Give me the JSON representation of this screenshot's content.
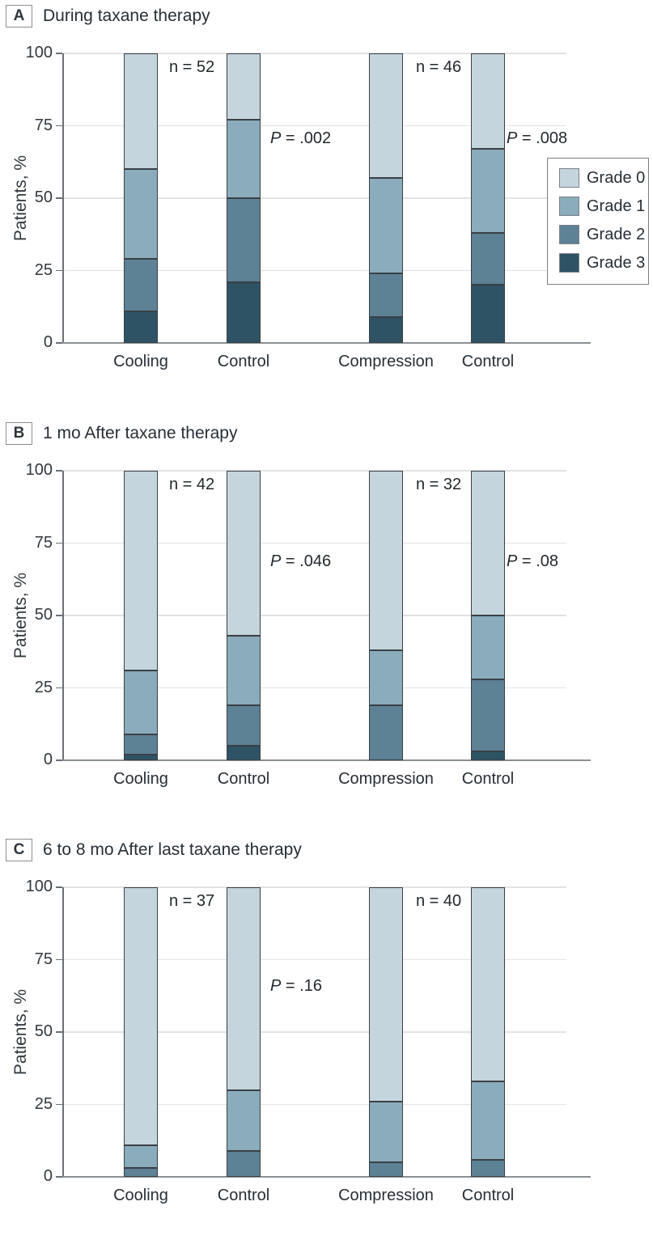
{
  "figure": {
    "ylabel": "Patients, %",
    "yticks": [
      "0",
      "25",
      "50",
      "75",
      "100"
    ]
  },
  "legend": {
    "items": [
      {
        "label": "Grade 0",
        "color": "#c5d5de"
      },
      {
        "label": "Grade 1",
        "color": "#8aacbc"
      },
      {
        "label": "Grade 2",
        "color": "#5d8195"
      },
      {
        "label": "Grade 3",
        "color": "#2e5364"
      }
    ]
  },
  "chart_data": [
    {
      "id": "a",
      "type": "bar",
      "stacked": true,
      "panel_letter": "A",
      "title": "During taxane therapy",
      "categories": [
        "Cooling",
        "Control",
        "Compression",
        "Control"
      ],
      "series": [
        {
          "name": "Grade 0",
          "color": "#c5d5de",
          "values": [
            40,
            23,
            43,
            33
          ]
        },
        {
          "name": "Grade 1",
          "color": "#8aacbc",
          "values": [
            31,
            27,
            33,
            29
          ]
        },
        {
          "name": "Grade 2",
          "color": "#5d8195",
          "values": [
            18,
            29,
            15,
            18
          ]
        },
        {
          "name": "Grade 3",
          "color": "#2e5364",
          "values": [
            11,
            21,
            9,
            20
          ]
        }
      ],
      "ylabel": "Patients, %",
      "ylim": [
        0,
        100
      ],
      "grid": true,
      "legend_position": "right",
      "annotations": {
        "n1": "n = 52",
        "n2": "n = 46",
        "p1": "P = .002",
        "p2": "P = .008"
      }
    },
    {
      "id": "b",
      "type": "bar",
      "stacked": true,
      "panel_letter": "B",
      "title": "1 mo After taxane therapy",
      "categories": [
        "Cooling",
        "Control",
        "Compression",
        "Control"
      ],
      "series": [
        {
          "name": "Grade 0",
          "color": "#c5d5de",
          "values": [
            69,
            57,
            62,
            50
          ]
        },
        {
          "name": "Grade 1",
          "color": "#8aacbc",
          "values": [
            22,
            24,
            19,
            22
          ]
        },
        {
          "name": "Grade 2",
          "color": "#5d8195",
          "values": [
            7,
            14,
            19,
            25
          ]
        },
        {
          "name": "Grade 3",
          "color": "#2e5364",
          "values": [
            2,
            5,
            0,
            3
          ]
        }
      ],
      "ylabel": "Patients, %",
      "ylim": [
        0,
        100
      ],
      "grid": true,
      "annotations": {
        "n1": "n = 42",
        "n2": "n = 32",
        "p1": "P = .046",
        "p2": "P = .08"
      }
    },
    {
      "id": "c",
      "type": "bar",
      "stacked": true,
      "panel_letter": "C",
      "title": "6 to 8 mo After last taxane therapy",
      "categories": [
        "Cooling",
        "Control",
        "Compression",
        "Control"
      ],
      "series": [
        {
          "name": "Grade 0",
          "color": "#c5d5de",
          "values": [
            89,
            70,
            74,
            67
          ]
        },
        {
          "name": "Grade 1",
          "color": "#8aacbc",
          "values": [
            8,
            21,
            21,
            27
          ]
        },
        {
          "name": "Grade 2",
          "color": "#5d8195",
          "values": [
            3,
            9,
            5,
            6
          ]
        },
        {
          "name": "Grade 3",
          "color": "#2e5364",
          "values": [
            0,
            0,
            0,
            0
          ]
        }
      ],
      "ylabel": "Patients, %",
      "ylim": [
        0,
        100
      ],
      "grid": true,
      "annotations": {
        "n1": "n = 37",
        "n2": "n = 40",
        "p1": "P = .16",
        "p2": null
      }
    }
  ]
}
